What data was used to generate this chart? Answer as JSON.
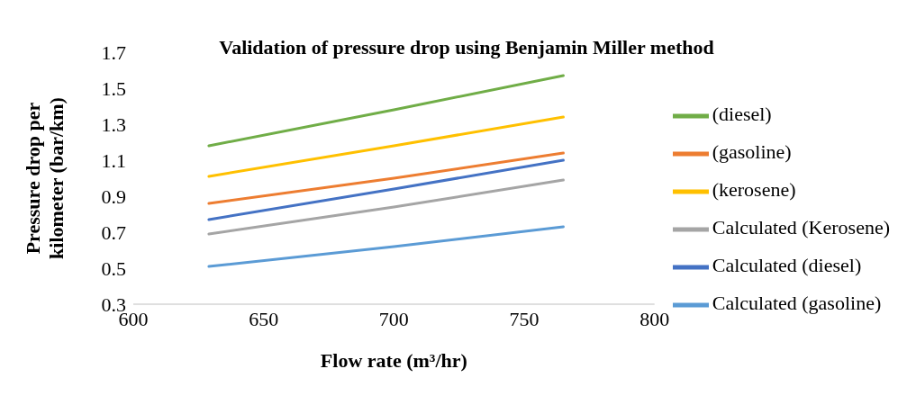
{
  "chart_data": {
    "type": "line",
    "title": "Validation of pressure drop using Benjamin Miller method",
    "xlabel": "Flow rate (m³/hr)",
    "ylabel": "Pressure drop per kilometer (bar/km)",
    "x": [
      629,
      700,
      765
    ],
    "series": [
      {
        "name": "Calculated (gasoline)",
        "color": "#5b9bd5",
        "values": [
          0.51,
          0.62,
          0.73
        ]
      },
      {
        "name": "(gasoline)",
        "color": "#ed7d31",
        "values": [
          0.86,
          1.0,
          1.14
        ]
      },
      {
        "name": "Calculated (Kerosene)",
        "color": "#a5a5a5",
        "values": [
          0.69,
          0.84,
          0.99
        ]
      },
      {
        "name": "(kerosene)",
        "color": "#ffc000",
        "values": [
          1.01,
          1.18,
          1.34
        ]
      },
      {
        "name": "Calculated (diesel)",
        "color": "#4472c4",
        "values": [
          0.77,
          0.94,
          1.1
        ]
      },
      {
        "name": "(diesel)",
        "color": "#70ad47",
        "values": [
          1.18,
          1.38,
          1.57
        ]
      }
    ],
    "xlim": [
      600,
      800
    ],
    "xticks": [
      600,
      650,
      700,
      750,
      800
    ],
    "ylim": [
      0.3,
      1.7
    ],
    "yticks": [
      0.3,
      0.5,
      0.7,
      0.9,
      1.1,
      1.3,
      1.5,
      1.7
    ],
    "grid": false,
    "legend": "right",
    "marker": "none",
    "line_style": "solid"
  }
}
